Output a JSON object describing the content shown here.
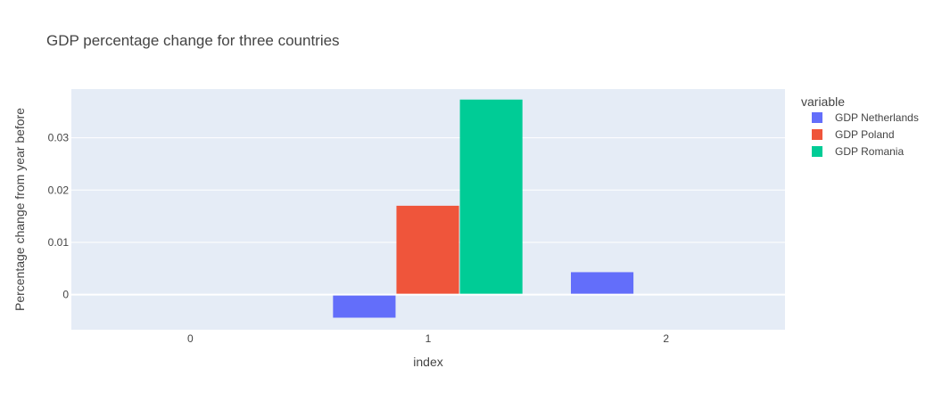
{
  "chart_data": {
    "type": "bar",
    "title": "GDP percentage change for three countries",
    "xlabel": "index",
    "ylabel": "Percentage change from year before",
    "categories": [
      "0",
      "1",
      "2"
    ],
    "series": [
      {
        "name": "GDP Netherlands",
        "color": "#636efa",
        "values": [
          null,
          -0.0044,
          0.0043
        ]
      },
      {
        "name": "GDP Poland",
        "color": "#ef553b",
        "values": [
          null,
          0.017,
          null
        ]
      },
      {
        "name": "GDP Romania",
        "color": "#00cc96",
        "values": [
          null,
          0.0373,
          null
        ]
      }
    ],
    "ylim": [
      -0.0067,
      0.0393
    ],
    "yticks": [
      0,
      0.01,
      0.02,
      0.03
    ],
    "ytick_labels": [
      "0",
      "0.01",
      "0.02",
      "0.03"
    ],
    "grid": true,
    "legend": {
      "title": "variable",
      "position": "right"
    }
  }
}
